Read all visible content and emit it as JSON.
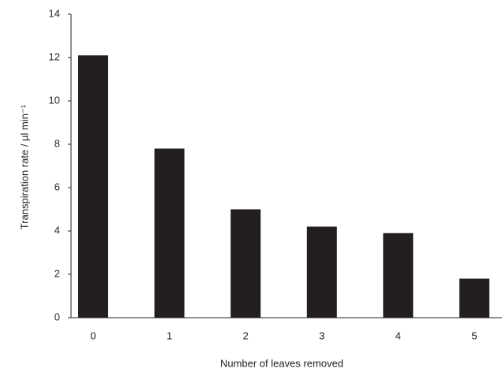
{
  "chart_data": {
    "type": "bar",
    "x_label": "Number of leaves removed",
    "y_label": "Transpiration rate / µl min⁻¹",
    "categories": [
      "0",
      "1",
      "2",
      "3",
      "4",
      "5"
    ],
    "values": [
      12.1,
      7.8,
      5.0,
      4.2,
      3.9,
      1.8
    ],
    "color": "#231f20",
    "ylim": [
      0,
      14
    ],
    "yticks": [
      0,
      2,
      4,
      6,
      8,
      10,
      12,
      14
    ],
    "grid": false
  }
}
